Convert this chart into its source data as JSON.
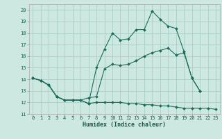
{
  "title": "",
  "xlabel": "Humidex (Indice chaleur)",
  "bg_color": "#cce8e0",
  "grid_color": "#aad0c8",
  "line_color": "#1a6b5a",
  "xlim": [
    -0.5,
    23.5
  ],
  "ylim": [
    11,
    20.5
  ],
  "xticks": [
    0,
    1,
    2,
    3,
    4,
    5,
    6,
    7,
    8,
    9,
    10,
    11,
    12,
    13,
    14,
    15,
    16,
    17,
    18,
    19,
    20,
    21,
    22,
    23
  ],
  "yticks": [
    11,
    12,
    13,
    14,
    15,
    16,
    17,
    18,
    19,
    20
  ],
  "line1_x": [
    0,
    1,
    2,
    3,
    4,
    5,
    6,
    7,
    8,
    9,
    10,
    11,
    12,
    13,
    14,
    15,
    16,
    17,
    18,
    19,
    20,
    21
  ],
  "line1_y": [
    14.1,
    13.9,
    13.5,
    12.5,
    12.2,
    12.2,
    12.2,
    11.9,
    15.0,
    16.6,
    18.0,
    17.4,
    17.5,
    18.3,
    18.3,
    19.9,
    19.2,
    18.6,
    18.4,
    16.4,
    14.1,
    13.0
  ],
  "line2_x": [
    0,
    1,
    2,
    3,
    4,
    5,
    6,
    7,
    8,
    9,
    10,
    11,
    12,
    13,
    14,
    15,
    16,
    17,
    18,
    19,
    20,
    21
  ],
  "line2_y": [
    14.1,
    13.9,
    13.5,
    12.5,
    12.2,
    12.2,
    12.2,
    12.4,
    12.5,
    14.9,
    15.3,
    15.2,
    15.3,
    15.6,
    16.0,
    16.3,
    16.5,
    16.7,
    16.1,
    16.3,
    14.1,
    13.0
  ],
  "line3_x": [
    0,
    1,
    2,
    3,
    4,
    5,
    6,
    7,
    8,
    9,
    10,
    11,
    12,
    13,
    14,
    15,
    16,
    17,
    18,
    19,
    20,
    21,
    22,
    23
  ],
  "line3_y": [
    14.1,
    13.9,
    13.5,
    12.5,
    12.2,
    12.2,
    12.2,
    11.9,
    12.0,
    12.0,
    12.0,
    12.0,
    11.9,
    11.9,
    11.8,
    11.8,
    11.7,
    11.7,
    11.6,
    11.5,
    11.5,
    11.5,
    11.5,
    11.4
  ],
  "xlabel_fontsize": 6.0,
  "tick_fontsize": 5.0
}
